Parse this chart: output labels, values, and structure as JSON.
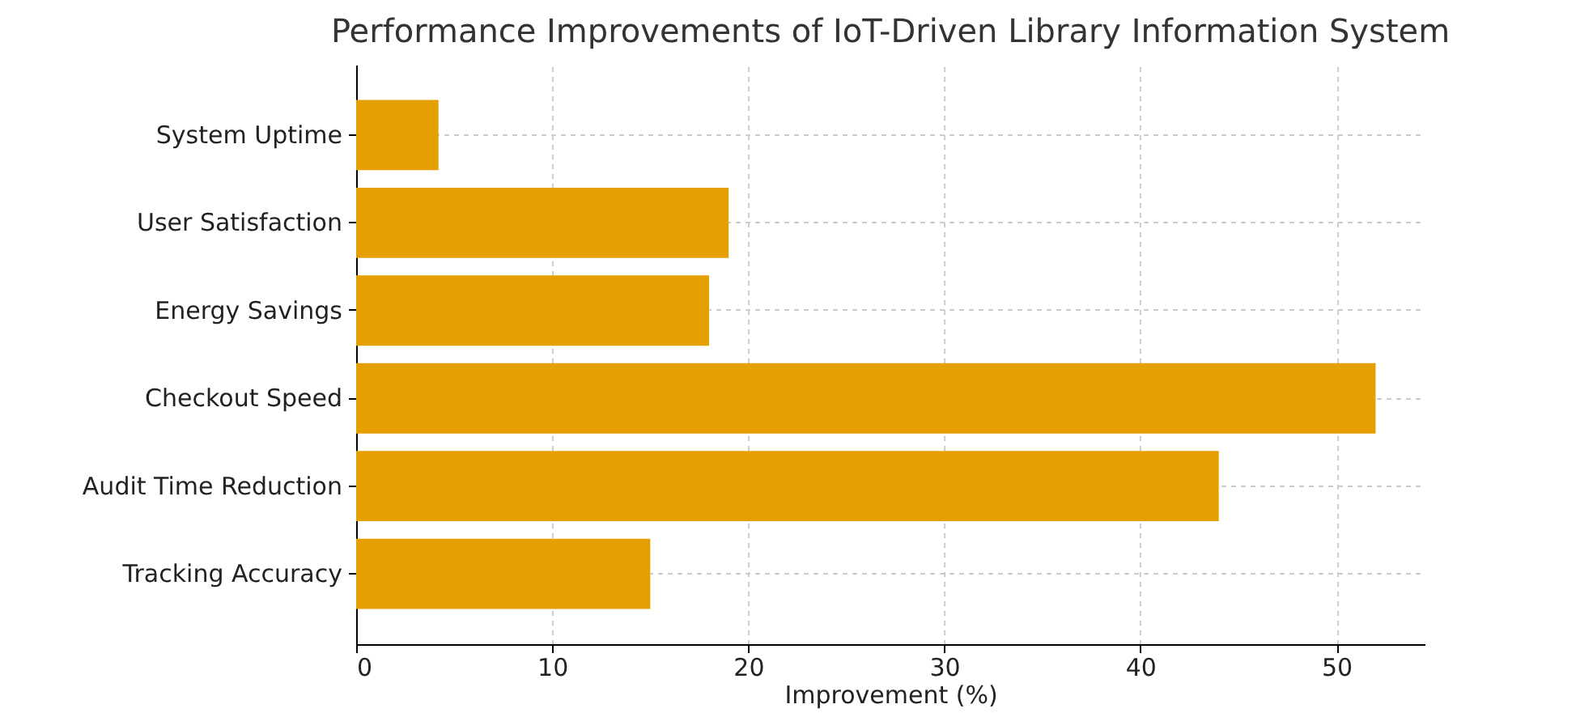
{
  "chart_data": {
    "type": "bar",
    "orientation": "horizontal",
    "title": "Performance Improvements of IoT-Driven Library Information System",
    "xlabel": "Improvement (%)",
    "categories": [
      "System Uptime",
      "User Satisfaction",
      "Energy Savings",
      "Checkout Speed",
      "Audit Time Reduction",
      "Tracking Accuracy"
    ],
    "values": [
      4.2,
      19,
      18,
      52,
      44,
      15
    ],
    "color": "#e69f00",
    "xlim": [
      0,
      54.5
    ],
    "xticks": [
      0,
      10,
      20,
      30,
      40,
      50
    ],
    "grid": true
  }
}
